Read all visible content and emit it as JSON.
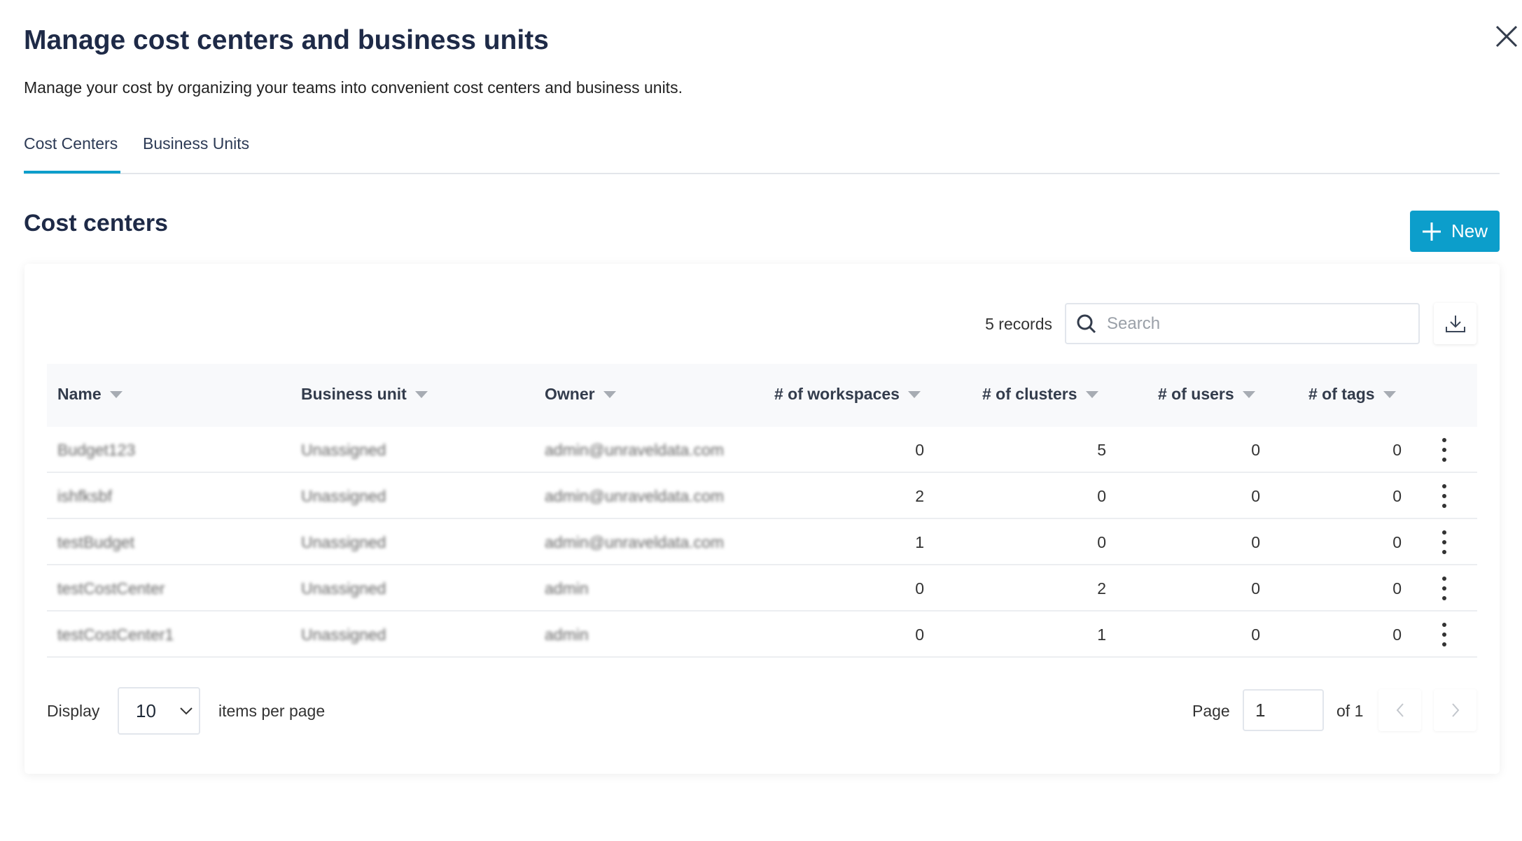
{
  "header": {
    "title": "Manage cost centers and business units",
    "subtitle": "Manage your cost by organizing your teams into convenient cost centers and business units."
  },
  "tabs": [
    {
      "label": "Cost Centers",
      "active": true
    },
    {
      "label": "Business Units",
      "active": false
    }
  ],
  "section": {
    "title": "Cost centers",
    "new_label": "New"
  },
  "toolbar": {
    "records": "5 records",
    "search_placeholder": "Search",
    "search_value": ""
  },
  "table": {
    "columns": [
      "Name",
      "Business unit",
      "Owner",
      "# of workspaces",
      "# of clusters",
      "# of users",
      "# of tags"
    ],
    "rows": [
      [
        "Budget123",
        "Unassigned",
        "admin@unraveldata.com",
        "0",
        "5",
        "0",
        "0"
      ],
      [
        "ishfksbf",
        "Unassigned",
        "admin@unraveldata.com",
        "2",
        "0",
        "0",
        "0"
      ],
      [
        "testBudget",
        "Unassigned",
        "admin@unraveldata.com",
        "1",
        "0",
        "0",
        "0"
      ],
      [
        "testCostCenter",
        "Unassigned",
        "admin",
        "0",
        "2",
        "0",
        "0"
      ],
      [
        "testCostCenter1",
        "Unassigned",
        "admin",
        "0",
        "1",
        "0",
        "0"
      ]
    ]
  },
  "footer": {
    "display": "Display",
    "per_page_value": "10",
    "items_per_page": "items per page",
    "page_label": "Page",
    "page_value": "1",
    "of_label": "of 1"
  },
  "colors": {
    "accent": "#0c9ecb",
    "title": "#1e2a47"
  }
}
